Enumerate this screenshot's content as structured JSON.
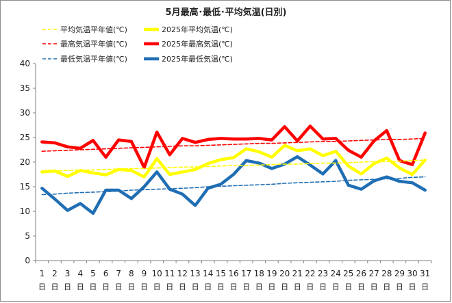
{
  "chart_data": {
    "type": "line",
    "title": "5月最高･最低･平均気温(日別)",
    "x": [
      "1",
      "2",
      "3",
      "4",
      "5",
      "6",
      "7",
      "8",
      "9",
      "10",
      "11",
      "12",
      "13",
      "14",
      "15",
      "16",
      "17",
      "18",
      "19",
      "20",
      "21",
      "22",
      "23",
      "24",
      "25",
      "26",
      "27",
      "28",
      "29",
      "30",
      "31"
    ],
    "day_suffix": "日",
    "ylim": [
      0,
      40
    ],
    "yticks": [
      0,
      5,
      10,
      15,
      20,
      25,
      30,
      35,
      40
    ],
    "grid": false,
    "legend_position": "top-left",
    "series": [
      {
        "name": "平均気温平年値(℃)",
        "color": "#FFFF00",
        "style": "dashed",
        "values": [
          18.1,
          18.2,
          18.3,
          18.4,
          18.4,
          18.5,
          18.6,
          18.7,
          18.7,
          18.8,
          18.9,
          19.0,
          19.0,
          19.1,
          19.2,
          19.3,
          19.3,
          19.4,
          19.5,
          19.6,
          19.6,
          19.7,
          19.8,
          19.8,
          19.9,
          20.0,
          20.1,
          20.1,
          20.2,
          20.3,
          20.4
        ]
      },
      {
        "name": "2025年平均気温(℃)",
        "color": "#FFFF00",
        "style": "solid",
        "values": [
          18.0,
          18.2,
          17.1,
          18.3,
          17.8,
          17.4,
          18.5,
          18.3,
          17.0,
          20.7,
          17.5,
          18.0,
          18.5,
          19.7,
          20.5,
          20.9,
          22.7,
          22.1,
          21.0,
          23.4,
          22.3,
          22.7,
          21.3,
          22.2,
          19.2,
          17.6,
          19.7,
          20.8,
          18.8,
          17.5,
          20.4
        ]
      },
      {
        "name": "最高気温平年値(℃)",
        "color": "#FF0000",
        "style": "dashed",
        "values": [
          22.2,
          22.3,
          22.4,
          22.5,
          22.6,
          22.7,
          22.8,
          22.9,
          23.0,
          23.1,
          23.2,
          23.3,
          23.3,
          23.4,
          23.5,
          23.6,
          23.7,
          23.8,
          23.8,
          23.9,
          24.0,
          24.1,
          24.2,
          24.2,
          24.3,
          24.4,
          24.5,
          24.6,
          24.6,
          24.7,
          24.8
        ]
      },
      {
        "name": "2025年最高気温(℃)",
        "color": "#FF0000",
        "style": "solid",
        "values": [
          24.1,
          23.9,
          23.1,
          22.8,
          24.4,
          21.0,
          24.5,
          24.2,
          18.9,
          26.1,
          21.5,
          24.8,
          24.0,
          24.6,
          24.8,
          24.7,
          24.7,
          24.8,
          24.5,
          27.2,
          24.3,
          27.3,
          24.7,
          24.8,
          22.4,
          21.0,
          24.3,
          26.4,
          20.3,
          19.5,
          25.9
        ]
      },
      {
        "name": "最低気温平年値(℃)",
        "color": "#1F6EB4",
        "style": "dashed",
        "values": [
          13.4,
          13.5,
          13.7,
          13.8,
          13.9,
          14.0,
          14.1,
          14.3,
          14.4,
          14.5,
          14.6,
          14.7,
          14.8,
          15.0,
          15.1,
          15.2,
          15.3,
          15.4,
          15.5,
          15.7,
          15.8,
          15.9,
          16.0,
          16.1,
          16.3,
          16.4,
          16.5,
          16.6,
          16.7,
          16.9,
          17.0
        ]
      },
      {
        "name": "2025年最低気温(℃)",
        "color": "#1F6EB4",
        "style": "solid",
        "values": [
          14.7,
          12.5,
          10.2,
          11.6,
          9.6,
          14.3,
          14.3,
          12.6,
          15.0,
          18.0,
          14.5,
          13.5,
          11.2,
          14.7,
          15.5,
          17.5,
          20.3,
          19.8,
          18.7,
          19.6,
          21.1,
          19.4,
          17.6,
          20.3,
          15.3,
          14.5,
          16.2,
          17.0,
          16.1,
          15.8,
          14.3
        ]
      }
    ]
  }
}
